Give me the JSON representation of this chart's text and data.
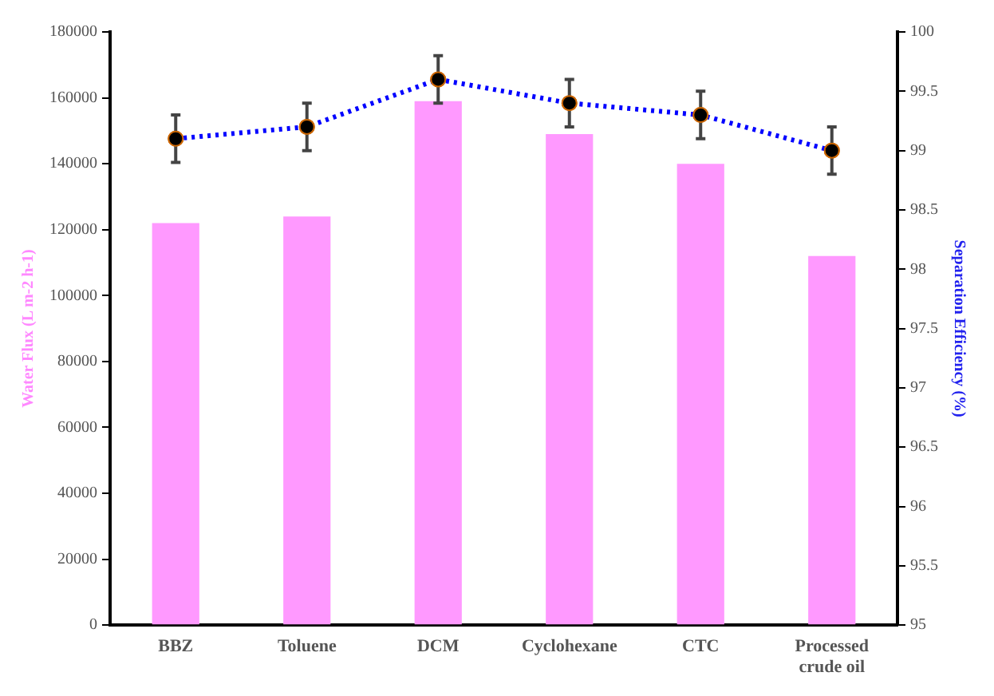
{
  "chart_data": {
    "type": "bar",
    "categories": [
      "BBZ",
      "Toluene",
      "DCM",
      "Cyclohexane",
      "CTC",
      "Processed crude oil"
    ],
    "series": [
      {
        "color": "#ff99ff",
        "values": [
          122000,
          124000,
          159000,
          149000,
          140000,
          112000
        ]
      },
      {
        "type": "line",
        "axis": "y2",
        "color": "#0000ff",
        "marker": "circle",
        "line_style": "dotted",
        "values": [
          99.1,
          99.2,
          99.6,
          99.4,
          99.3,
          99.0
        ],
        "errors": [
          0.2,
          0.2,
          0.2,
          0.2,
          0.2,
          0.2
        ]
      }
    ],
    "ylabel": "Water Flux (L m-2 h-1)",
    "y2label": "Separation Efficiency (%)",
    "ylim": [
      0,
      180000
    ],
    "yticks": [
      0,
      20000,
      40000,
      60000,
      80000,
      100000,
      120000,
      140000,
      160000,
      180000
    ],
    "y2lim": [
      95,
      100
    ],
    "y2ticks": [
      95,
      95.5,
      96,
      96.5,
      97,
      97.5,
      98,
      98.5,
      99,
      99.5,
      100
    ],
    "grid": false,
    "legend": false
  }
}
